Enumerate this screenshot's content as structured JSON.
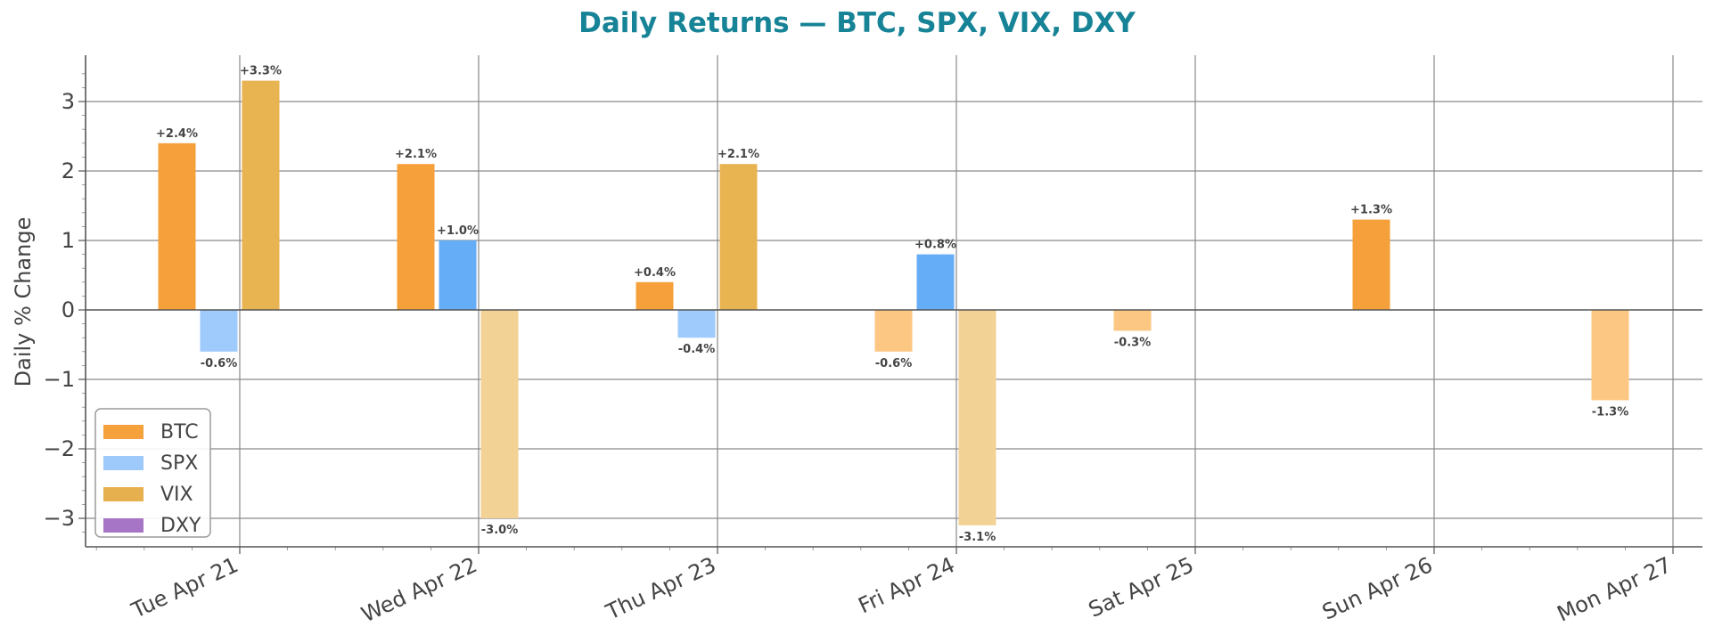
{
  "chart_data": {
    "type": "bar",
    "title": "Daily Returns — BTC, SPX, VIX, DXY",
    "xlabel": "",
    "ylabel": "Daily % Change",
    "ylim": [
      -3.4,
      3.65
    ],
    "yticks": [
      -3,
      -2,
      -1,
      0,
      1,
      2,
      3
    ],
    "ytick_labels": [
      "−3",
      "−2",
      "−1",
      "0",
      "1",
      "2",
      "3"
    ],
    "categories": [
      "Tue Apr 21",
      "Wed Apr 22",
      "Thu Apr 23",
      "Fri Apr 24",
      "Sat Apr 25",
      "Sun Apr 26",
      "Mon Apr 27"
    ],
    "grid": true,
    "legend_position": "lower-left",
    "series": [
      {
        "name": "BTC",
        "legend_color": "#f5a23c",
        "values": [
          2.4,
          2.1,
          0.4,
          -0.6,
          -0.3,
          1.3,
          -1.3
        ],
        "labels": [
          "+2.4%",
          "+2.1%",
          "+0.4%",
          "-0.6%",
          "-0.3%",
          "+1.3%",
          "-1.3%"
        ],
        "colors": [
          "#f5a03a",
          "#f5a03a",
          "#f5a03a",
          "#fcc783",
          "#fcc783",
          "#f5a03a",
          "#fcc783"
        ]
      },
      {
        "name": "SPX",
        "legend_color": "#9ec9fb",
        "values": [
          -0.6,
          1.0,
          -0.4,
          0.8,
          null,
          null,
          null
        ],
        "labels": [
          "-0.6%",
          "+1.0%",
          "-0.4%",
          "+0.8%",
          "",
          "",
          ""
        ],
        "colors": [
          "#9ecafc",
          "#66adf8",
          "#9ecafc",
          "#66adf8",
          "#9ecafc",
          "#9ecafc",
          "#9ecafc"
        ]
      },
      {
        "name": "VIX",
        "legend_color": "#e6b04e",
        "values": [
          3.3,
          -3.0,
          2.1,
          -3.1,
          null,
          null,
          null
        ],
        "labels": [
          "+3.3%",
          "-3.0%",
          "+2.1%",
          "-3.1%",
          "",
          "",
          ""
        ],
        "colors": [
          "#e8b452",
          "#f2d295",
          "#e8b452",
          "#f2d295",
          "#e8b452",
          "#e8b452",
          "#e8b452"
        ]
      },
      {
        "name": "DXY",
        "legend_color": "#a775c6",
        "values": [
          null,
          null,
          null,
          null,
          null,
          null,
          null
        ],
        "labels": [
          "",
          "",
          "",
          "",
          "",
          "",
          ""
        ],
        "colors": [
          "#a775c6",
          "#a775c6",
          "#a775c6",
          "#a775c6",
          "#a775c6",
          "#a775c6",
          "#a775c6"
        ]
      }
    ]
  }
}
